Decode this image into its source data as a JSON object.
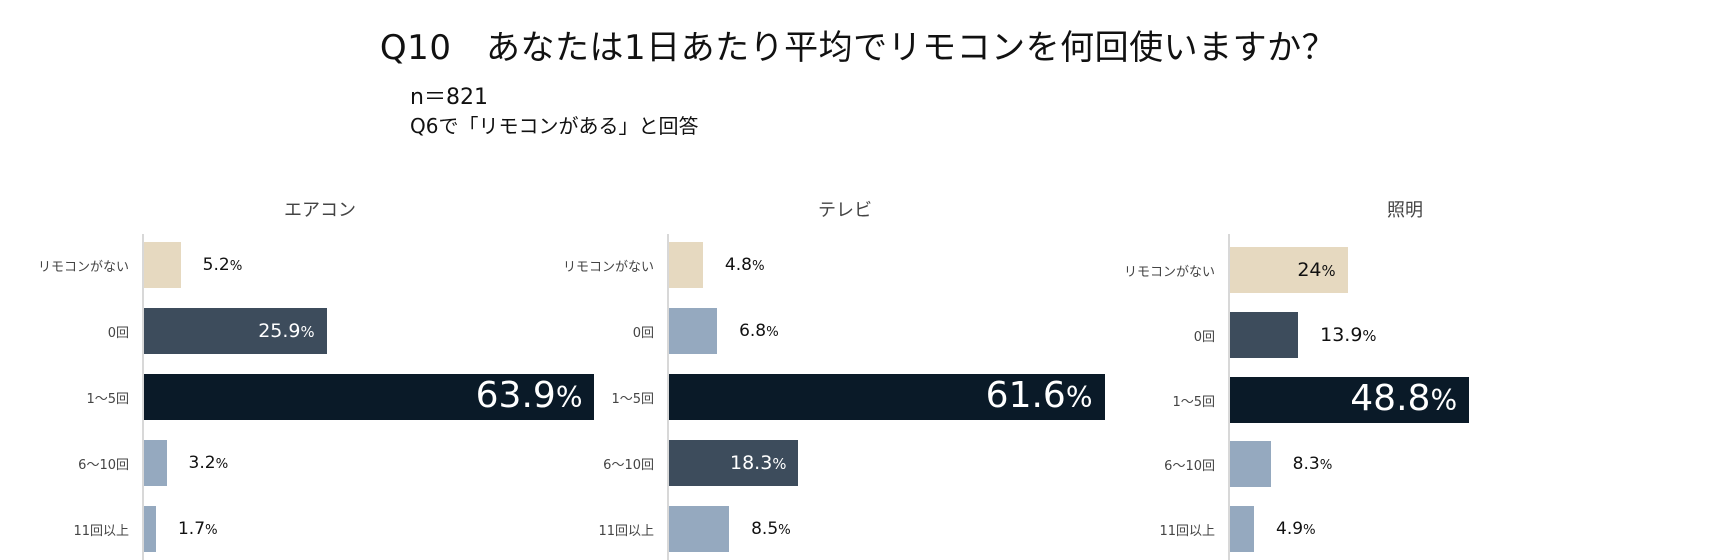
{
  "title": "Q10　あなたは1日あたり平均でリモコンを何回使いますか？",
  "sample_size": "n＝821",
  "condition": "Q6で「リモコンがある」と回答",
  "colors": {
    "none": "#e6d9c0",
    "zero": "#3d4c5c",
    "main": "#0a1a28",
    "light": "#95a9bf"
  },
  "chart_data": [
    {
      "type": "bar",
      "title": "エアコン",
      "categories": [
        "リモコンがない",
        "0回",
        "1～5回",
        "6～10回",
        "11回以上"
      ],
      "values": [
        5.2,
        25.9,
        63.9,
        3.2,
        1.7
      ],
      "value_labels": [
        "5.2",
        "25.9",
        "63.9",
        "3.2",
        "1.7"
      ],
      "unit": "%",
      "bar_colors": [
        "none",
        "zero",
        "main",
        "light",
        "light"
      ]
    },
    {
      "type": "bar",
      "title": "テレビ",
      "categories": [
        "リモコンがない",
        "0回",
        "1～5回",
        "6～10回",
        "11回以上"
      ],
      "values": [
        4.8,
        6.8,
        61.6,
        18.3,
        8.5
      ],
      "value_labels": [
        "4.8",
        "6.8",
        "61.6",
        "18.3",
        "8.5"
      ],
      "unit": "%",
      "bar_colors": [
        "none",
        "light",
        "main",
        "zero",
        "light"
      ]
    },
    {
      "type": "bar",
      "title": "照明",
      "categories": [
        "リモコンがない",
        "0回",
        "1～5回",
        "6～10回",
        "11回以上"
      ],
      "values": [
        24,
        13.9,
        48.8,
        8.3,
        4.9
      ],
      "value_labels": [
        "24",
        "13.9",
        "48.8",
        "8.3",
        "4.9"
      ],
      "unit": "%",
      "bar_colors": [
        "none",
        "zero",
        "main",
        "light",
        "light"
      ]
    }
  ]
}
